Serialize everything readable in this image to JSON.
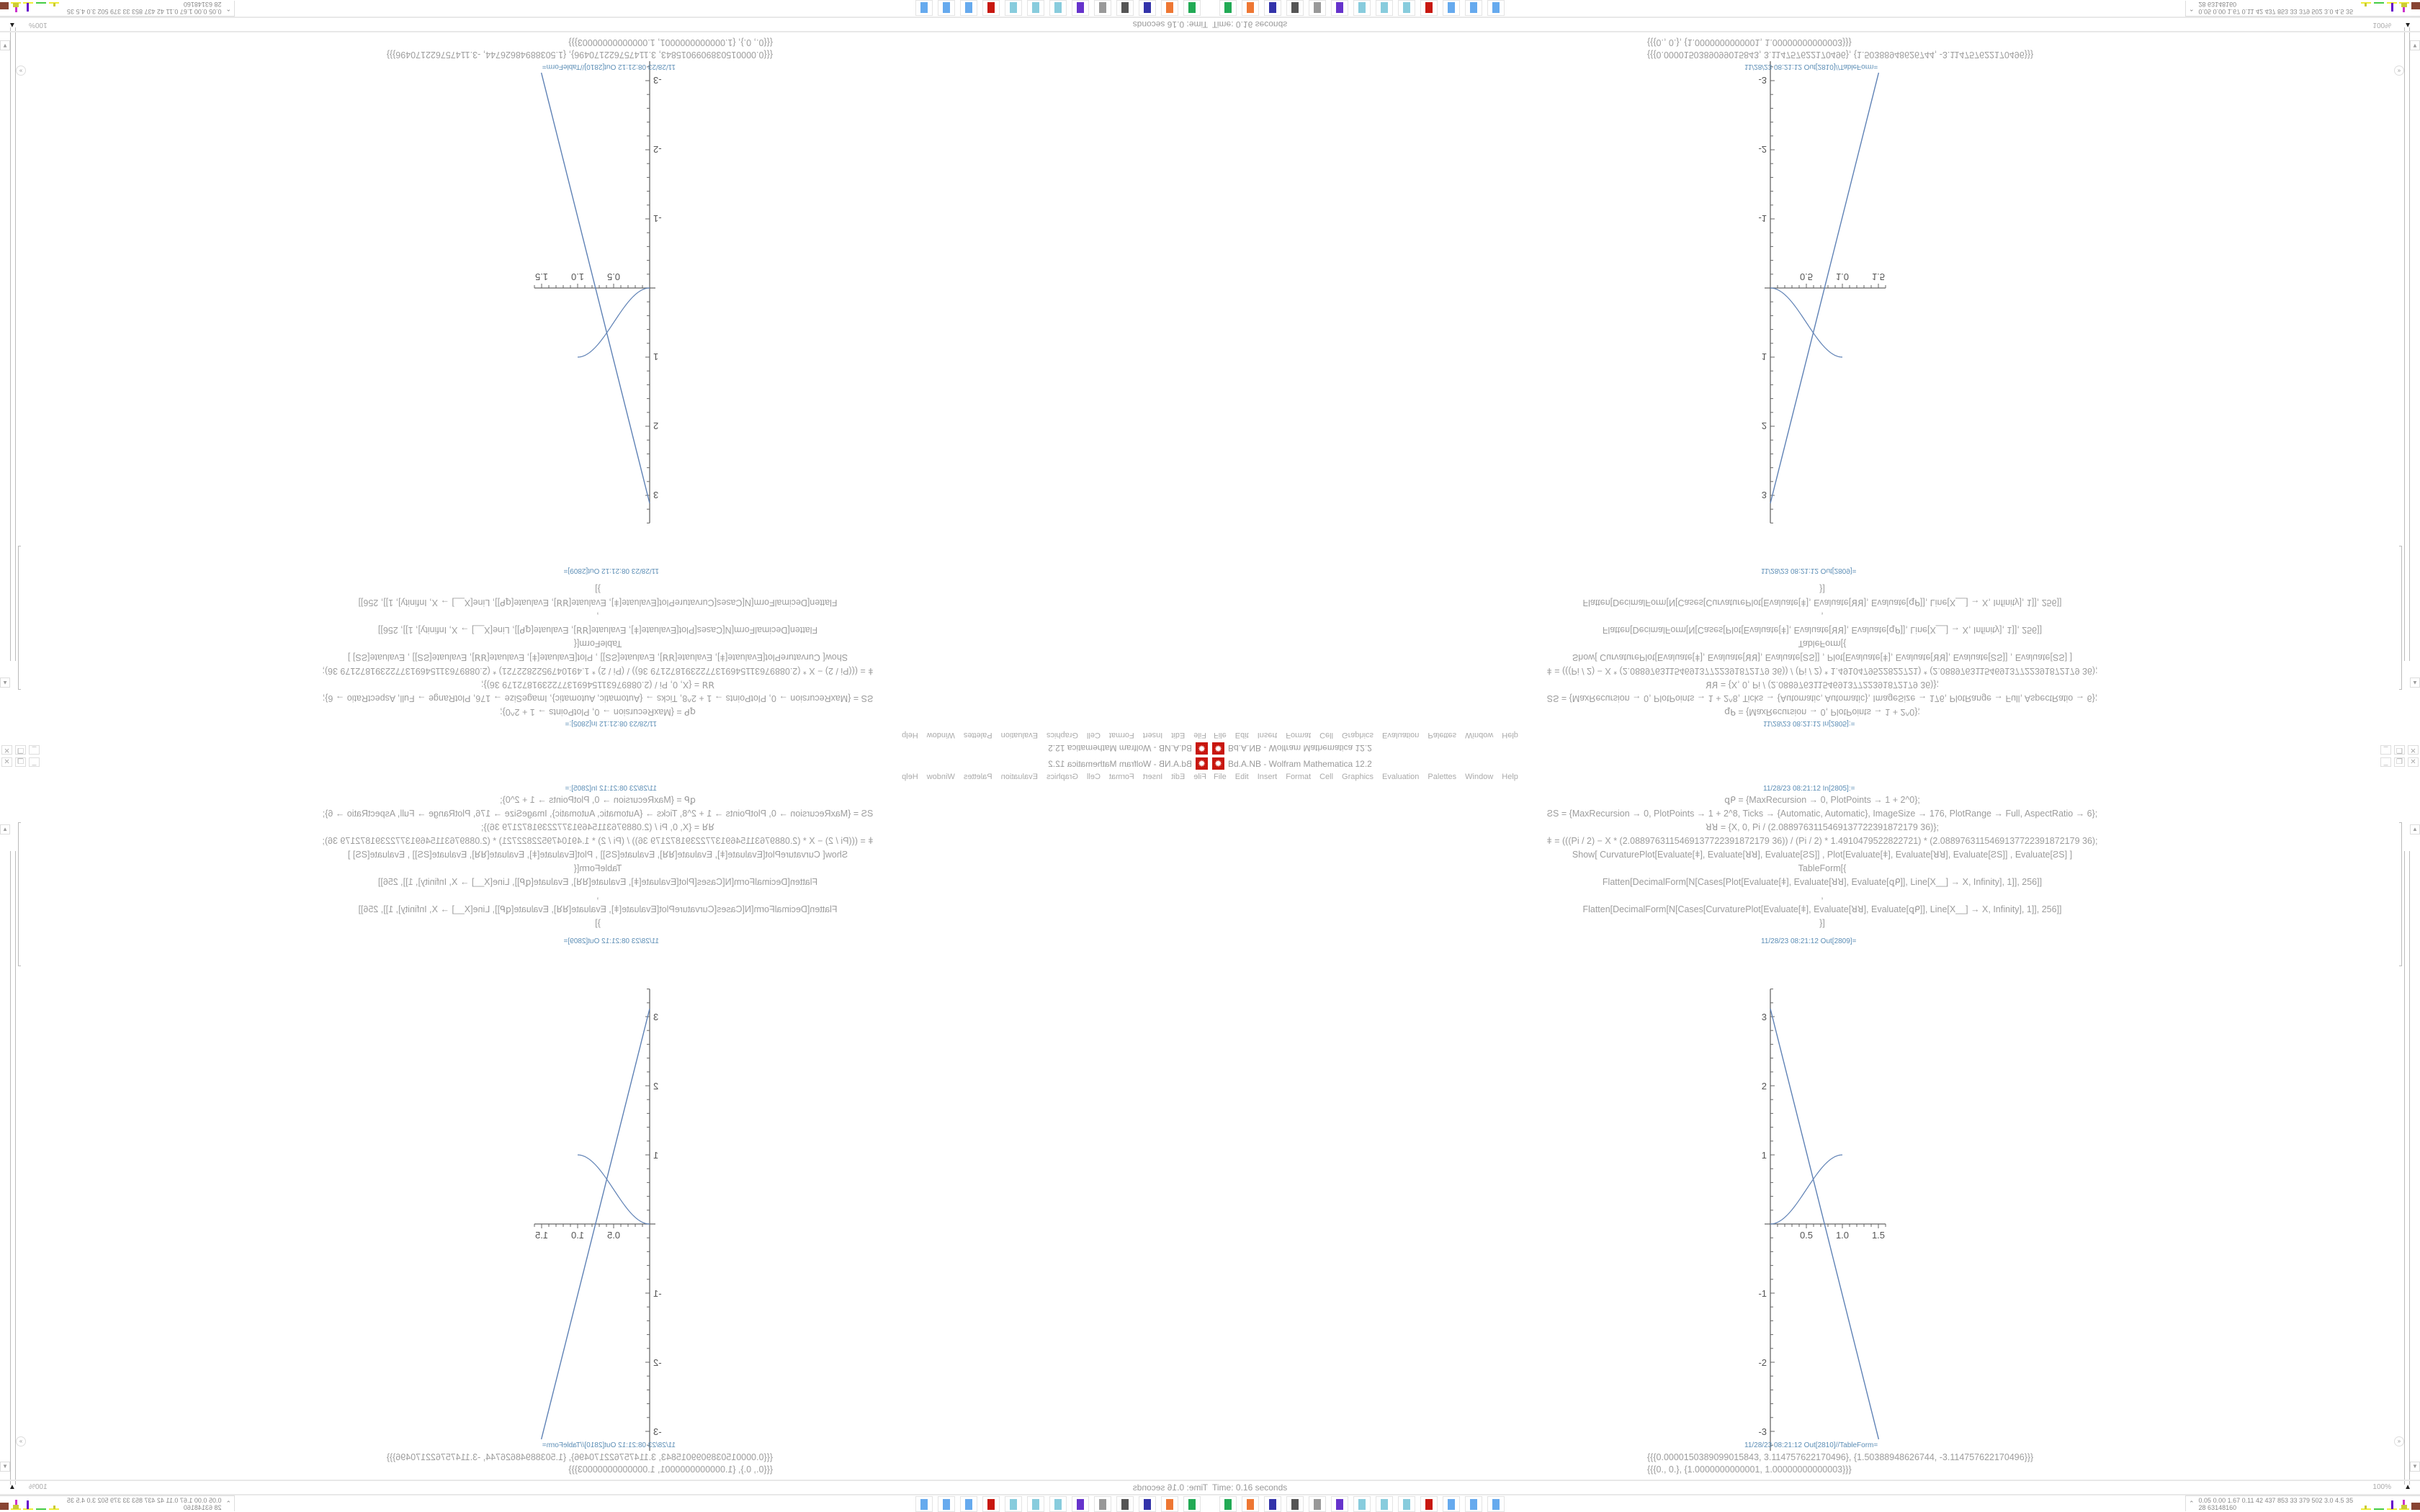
{
  "window": {
    "title": "Bd.A.NB - Wolfram Mathematica 12.2",
    "app_icon": "mathematica-gear-icon",
    "buttons": [
      "minimize",
      "restore",
      "close"
    ]
  },
  "menu": [
    "File",
    "Edit",
    "Insert",
    "Format",
    "Cell",
    "Graphics",
    "Evaluation",
    "Palettes",
    "Window",
    "Help"
  ],
  "notebook": {
    "input_label": "11/28/23 08:21:12 In[2805]:=",
    "code_lines": [
      "ꝗᑭ = {MaxRecursion → 0, PlotPoints → 1 + 2^0};",
      "ƧS = {MaxRecursion → 0, PlotPoints → 1 + 2^8, Ticks → {Automatic, Automatic}, ImageSize → 176, PlotRange → Full, AspectRatio → 6};",
      "ꓤꓤ = {X, 0, Pi / (2.0889763115469137722391872179 36)};",
      "ǂ = (((Pi / 2) − X * (2.0889763115469137722391872179 36)) / (Pi / 2) * 1.4910479522822721) * (2.0889763115469137722391872179 36);",
      "Show[   CurvaturePlot[Evaluate[ǂ], Evaluate[ꓤꓤ], Evaluate[ƧS]]   ,    Plot[Evaluate[ǂ], Evaluate[ꓤꓤ], Evaluate[ƧS]]   ,    Evaluate[ƧS]   ]",
      "TableForm[{",
      "Flatten[DecimalForm[N[Cases[Plot[Evaluate[ǂ], Evaluate[ꓤꓤ], Evaluate[ꝗᑭ]], Line[X__] → X, Infinity], 1]], 256]]",
      ",",
      "Flatten[DecimalForm[N[Cases[CurvaturePlot[Evaluate[ǂ], Evaluate[ꓤꓤ], Evaluate[ꝗᑭ]], Line[X__] → X, Infinity], 1]], 256]]",
      "}]"
    ],
    "plot_label": "11/28/23 08:21:12 Out[2809]=",
    "table_label": "11/28/23 08:21:12 Out[2810]//TableForm=",
    "results": [
      "{{{0.0000150389099015843, 3.114757622170496}, {1.50388948626744, -3.114757622170496}}}",
      "{{{0., 0.}, {1.0000000000001, 1.00000000000003}}}"
    ]
  },
  "status": {
    "time": "Time: 0.16 seconds",
    "zoom": "100%"
  },
  "taskbar": {
    "icons": [
      "usb-drive-icon",
      "firefox-icon",
      "floppy-64-icon",
      "monitor-icon",
      "speaker-icon",
      "purple-app-icon",
      "notepad-icon",
      "notepad-icon",
      "notepad-icon",
      "mathematica-icon",
      "calculator-icon",
      "calculator-icon",
      "calculator-icon"
    ],
    "tray_numbers": "0.05 0.00 1.67 0.11  42  437  853  33  379  502  3.0  4.5  35  28  63148160"
  },
  "chart_data": {
    "type": "line",
    "xlim": [
      0,
      1.6
    ],
    "ylim": [
      -3.4,
      3.4
    ],
    "xticks": [
      "0.5",
      "1.0",
      "1.5"
    ],
    "yticks": [
      "-3",
      "-2",
      "-1",
      "1",
      "2",
      "3"
    ],
    "line_color": "#5e81b5",
    "series": [
      {
        "points": [
          [
            1.50389099015843e-05,
            3.114757622170496
          ],
          [
            1.50388948626744,
            -3.114757622170496
          ]
        ]
      },
      {
        "points": [
          [
            0,
            0
          ],
          [
            1,
            1
          ]
        ],
        "shape": "s-curve"
      }
    ]
  }
}
